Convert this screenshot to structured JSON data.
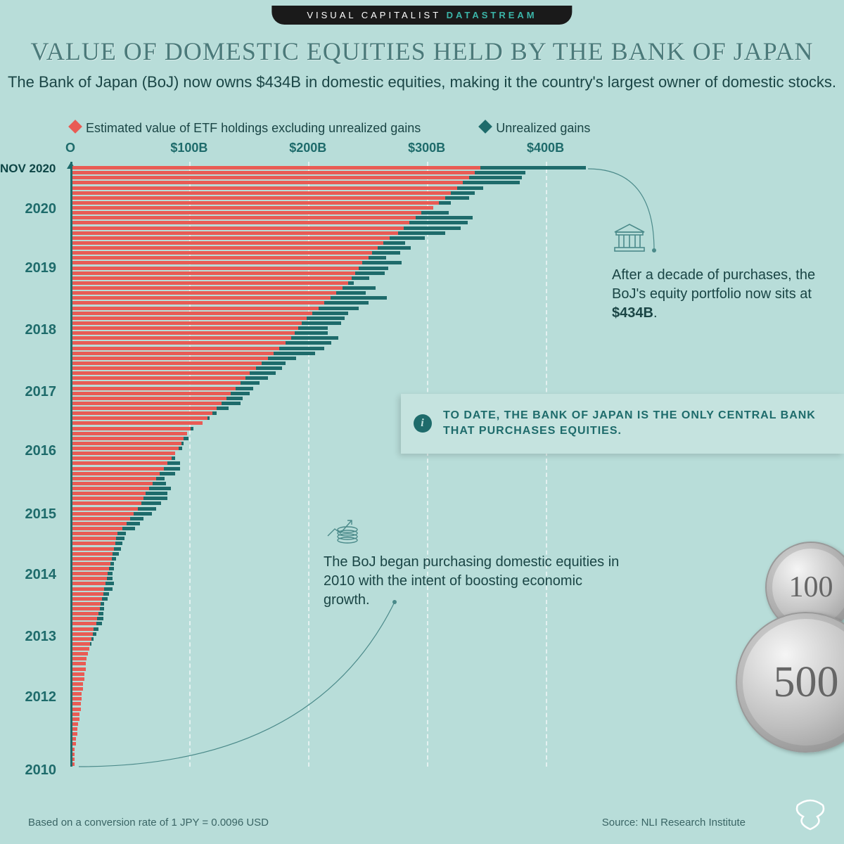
{
  "banner": {
    "left": "VISUAL CAPITALIST",
    "right": "DATASTREAM"
  },
  "title": "VALUE OF DOMESTIC EQUITIES HELD BY THE BANK OF JAPAN",
  "subtitle": "The Bank of Japan (BoJ) now owns $434B in domestic equities, making it the\ncountry's largest owner of domestic stocks.",
  "legend": {
    "series1": "Estimated value of ETF holdings excluding unrealized gains",
    "series2": "Unrealized gains"
  },
  "chart": {
    "type": "horizontal-stacked-bar",
    "x_max": 450,
    "x_ticks": [
      0,
      100,
      200,
      300,
      400
    ],
    "x_tick_labels": [
      "O",
      "$100B",
      "$200B",
      "$300B",
      "$400B"
    ],
    "x_tick_fontsize": 18,
    "x_tick_color": "#1e6b6b",
    "series_colors": {
      "etf": "#e95b54",
      "gains": "#1e6b6b"
    },
    "grid_color": "rgba(255,255,255,0.6)",
    "background_color": "#b8ddd9",
    "y_latest_label": "NOV 2020",
    "y_year_labels": [
      "2020",
      "2019",
      "2018",
      "2017",
      "2016",
      "2015",
      "2014",
      "2013",
      "2012",
      "2010"
    ],
    "data": [
      {
        "p": "2020-11",
        "etf": 345,
        "gains": 89
      },
      {
        "p": "2020-10",
        "etf": 340,
        "gains": 43
      },
      {
        "p": "2020-09",
        "etf": 335,
        "gains": 45
      },
      {
        "p": "2020-08",
        "etf": 330,
        "gains": 48
      },
      {
        "p": "2020-07",
        "etf": 325,
        "gains": 22
      },
      {
        "p": "2020-06",
        "etf": 320,
        "gains": 20
      },
      {
        "p": "2020-05",
        "etf": 315,
        "gains": 20
      },
      {
        "p": "2020-04",
        "etf": 310,
        "gains": 10
      },
      {
        "p": "2020-03",
        "etf": 305,
        "gains": -30
      },
      {
        "p": "2020-02",
        "etf": 295,
        "gains": 23
      },
      {
        "p": "2020-01",
        "etf": 290,
        "gains": 48
      },
      {
        "p": "2019-12",
        "etf": 285,
        "gains": 49
      },
      {
        "p": "2019-11",
        "etf": 280,
        "gains": 48
      },
      {
        "p": "2019-10",
        "etf": 275,
        "gains": 40
      },
      {
        "p": "2019-09",
        "etf": 268,
        "gains": 30
      },
      {
        "p": "2019-08",
        "etf": 263,
        "gains": 18
      },
      {
        "p": "2019-07",
        "etf": 258,
        "gains": 28
      },
      {
        "p": "2019-06",
        "etf": 253,
        "gains": 24
      },
      {
        "p": "2019-05",
        "etf": 250,
        "gains": 15
      },
      {
        "p": "2019-04",
        "etf": 245,
        "gains": 33
      },
      {
        "p": "2019-03",
        "etf": 242,
        "gains": 25
      },
      {
        "p": "2019-02",
        "etf": 239,
        "gains": 25
      },
      {
        "p": "2019-01",
        "etf": 236,
        "gains": 15
      },
      {
        "p": "2018-12",
        "etf": 233,
        "gains": 5
      },
      {
        "p": "2018-11",
        "etf": 228,
        "gains": 28
      },
      {
        "p": "2018-10",
        "etf": 223,
        "gains": 25
      },
      {
        "p": "2018-09",
        "etf": 218,
        "gains": 48
      },
      {
        "p": "2018-08",
        "etf": 213,
        "gains": 37
      },
      {
        "p": "2018-07",
        "etf": 208,
        "gains": 34
      },
      {
        "p": "2018-06",
        "etf": 203,
        "gains": 30
      },
      {
        "p": "2018-05",
        "etf": 198,
        "gains": 32
      },
      {
        "p": "2018-04",
        "etf": 194,
        "gains": 33
      },
      {
        "p": "2018-03",
        "etf": 191,
        "gains": 25
      },
      {
        "p": "2018-02",
        "etf": 188,
        "gains": 28
      },
      {
        "p": "2018-01",
        "etf": 185,
        "gains": 40
      },
      {
        "p": "2017-12",
        "etf": 180,
        "gains": 39
      },
      {
        "p": "2017-11",
        "etf": 175,
        "gains": 38
      },
      {
        "p": "2017-10",
        "etf": 170,
        "gains": 35
      },
      {
        "p": "2017-09",
        "etf": 165,
        "gains": 24
      },
      {
        "p": "2017-08",
        "etf": 160,
        "gains": 20
      },
      {
        "p": "2017-07",
        "etf": 155,
        "gains": 22
      },
      {
        "p": "2017-06",
        "etf": 150,
        "gains": 22
      },
      {
        "p": "2017-05",
        "etf": 146,
        "gains": 19
      },
      {
        "p": "2017-04",
        "etf": 142,
        "gains": 16
      },
      {
        "p": "2017-03",
        "etf": 138,
        "gains": 15
      },
      {
        "p": "2017-02",
        "etf": 134,
        "gains": 16
      },
      {
        "p": "2017-01",
        "etf": 130,
        "gains": 14
      },
      {
        "p": "2016-12",
        "etf": 126,
        "gains": 16
      },
      {
        "p": "2016-11",
        "etf": 122,
        "gains": 10
      },
      {
        "p": "2016-10",
        "etf": 118,
        "gains": 4
      },
      {
        "p": "2016-09",
        "etf": 114,
        "gains": 2
      },
      {
        "p": "2016-08",
        "etf": 110,
        "gains": 0
      },
      {
        "p": "2016-07",
        "etf": 100,
        "gains": 2
      },
      {
        "p": "2016-06",
        "etf": 97,
        "gains": -4
      },
      {
        "p": "2016-05",
        "etf": 94,
        "gains": 4
      },
      {
        "p": "2016-04",
        "etf": 92,
        "gains": 2
      },
      {
        "p": "2016-03",
        "etf": 90,
        "gains": 3
      },
      {
        "p": "2016-02",
        "etf": 87,
        "gains": -1
      },
      {
        "p": "2016-01",
        "etf": 84,
        "gains": 3
      },
      {
        "p": "2015-12",
        "etf": 80,
        "gains": 11
      },
      {
        "p": "2015-11",
        "etf": 77,
        "gains": 14
      },
      {
        "p": "2015-10",
        "etf": 74,
        "gains": 13
      },
      {
        "p": "2015-09",
        "etf": 71,
        "gains": 7
      },
      {
        "p": "2015-08",
        "etf": 68,
        "gains": 11
      },
      {
        "p": "2015-07",
        "etf": 65,
        "gains": 18
      },
      {
        "p": "2015-06",
        "etf": 62,
        "gains": 18
      },
      {
        "p": "2015-05",
        "etf": 60,
        "gains": 20
      },
      {
        "p": "2015-04",
        "etf": 58,
        "gains": 17
      },
      {
        "p": "2015-03",
        "etf": 55,
        "gains": 16
      },
      {
        "p": "2015-02",
        "etf": 52,
        "gains": 15
      },
      {
        "p": "2015-01",
        "etf": 49,
        "gains": 11
      },
      {
        "p": "2014-12",
        "etf": 46,
        "gains": 11
      },
      {
        "p": "2014-11",
        "etf": 42,
        "gains": 11
      },
      {
        "p": "2014-10",
        "etf": 38,
        "gains": 7
      },
      {
        "p": "2014-09",
        "etf": 37,
        "gains": 7
      },
      {
        "p": "2014-08",
        "etf": 36,
        "gains": 6
      },
      {
        "p": "2014-07",
        "etf": 35,
        "gains": 6
      },
      {
        "p": "2014-06",
        "etf": 34,
        "gains": 5
      },
      {
        "p": "2014-05",
        "etf": 33,
        "gains": 4
      },
      {
        "p": "2014-04",
        "etf": 32,
        "gains": 3
      },
      {
        "p": "2014-03",
        "etf": 31,
        "gains": 4
      },
      {
        "p": "2014-02",
        "etf": 30,
        "gains": 4
      },
      {
        "p": "2014-01",
        "etf": 29,
        "gains": 5
      },
      {
        "p": "2013-12",
        "etf": 28,
        "gains": 7
      },
      {
        "p": "2013-11",
        "etf": 27,
        "gains": 7
      },
      {
        "p": "2013-10",
        "etf": 26,
        "gains": 5
      },
      {
        "p": "2013-09",
        "etf": 25,
        "gains": 5
      },
      {
        "p": "2013-08",
        "etf": 24,
        "gains": 3
      },
      {
        "p": "2013-07",
        "etf": 23,
        "gains": 4
      },
      {
        "p": "2013-06",
        "etf": 22,
        "gains": 4
      },
      {
        "p": "2013-05",
        "etf": 21,
        "gains": 5
      },
      {
        "p": "2013-04",
        "etf": 20,
        "gains": 5
      },
      {
        "p": "2013-03",
        "etf": 18,
        "gains": 4
      },
      {
        "p": "2013-02",
        "etf": 17,
        "gains": 3
      },
      {
        "p": "2013-01",
        "etf": 16,
        "gains": 2
      },
      {
        "p": "2012-12",
        "etf": 15,
        "gains": 1
      },
      {
        "p": "2012-11",
        "etf": 14,
        "gains": 0
      },
      {
        "p": "2012-10",
        "etf": 13,
        "gains": 0
      },
      {
        "p": "2012-09",
        "etf": 12,
        "gains": 0
      },
      {
        "p": "2012-08",
        "etf": 11,
        "gains": 0
      },
      {
        "p": "2012-07",
        "etf": 11,
        "gains": 0
      },
      {
        "p": "2012-06",
        "etf": 10,
        "gains": 0
      },
      {
        "p": "2012-05",
        "etf": 10,
        "gains": 0
      },
      {
        "p": "2012-04",
        "etf": 9,
        "gains": 0
      },
      {
        "p": "2012-03",
        "etf": 9,
        "gains": 0
      },
      {
        "p": "2012-02",
        "etf": 8,
        "gains": 0
      },
      {
        "p": "2012-01",
        "etf": 8,
        "gains": 0
      },
      {
        "p": "2011-12",
        "etf": 7,
        "gains": 0
      },
      {
        "p": "2011-11",
        "etf": 7,
        "gains": 0
      },
      {
        "p": "2011-10",
        "etf": 6,
        "gains": 0
      },
      {
        "p": "2011-09",
        "etf": 6,
        "gains": 0
      },
      {
        "p": "2011-08",
        "etf": 5,
        "gains": 0
      },
      {
        "p": "2011-07",
        "etf": 4,
        "gains": 0
      },
      {
        "p": "2011-06",
        "etf": 4,
        "gains": 0
      },
      {
        "p": "2011-05",
        "etf": 3,
        "gains": 0
      },
      {
        "p": "2011-04",
        "etf": 3,
        "gains": 0
      },
      {
        "p": "2011-03",
        "etf": 2,
        "gains": 0
      },
      {
        "p": "2011-02",
        "etf": 2,
        "gains": 0
      },
      {
        "p": "2011-01",
        "etf": 2,
        "gains": 0
      },
      {
        "p": "2010-12",
        "etf": 2,
        "gains": 0
      }
    ]
  },
  "annotations": {
    "top_html": "After a decade of purchases, the BoJ's equity portfolio now sits at <b>$434B</b>.",
    "bottom": "The BoJ began purchasing domestic equities in 2010 with the intent of boosting economic growth."
  },
  "info_box": "TO DATE, THE BANK OF JAPAN IS THE ONLY CENTRAL BANK THAT PURCHASES EQUITIES.",
  "footer": {
    "left": "Based on a conversion rate of 1 JPY = 0.0096 USD",
    "right": "Source: NLI Research Institute"
  },
  "coins": {
    "small": "100",
    "large": "500"
  }
}
